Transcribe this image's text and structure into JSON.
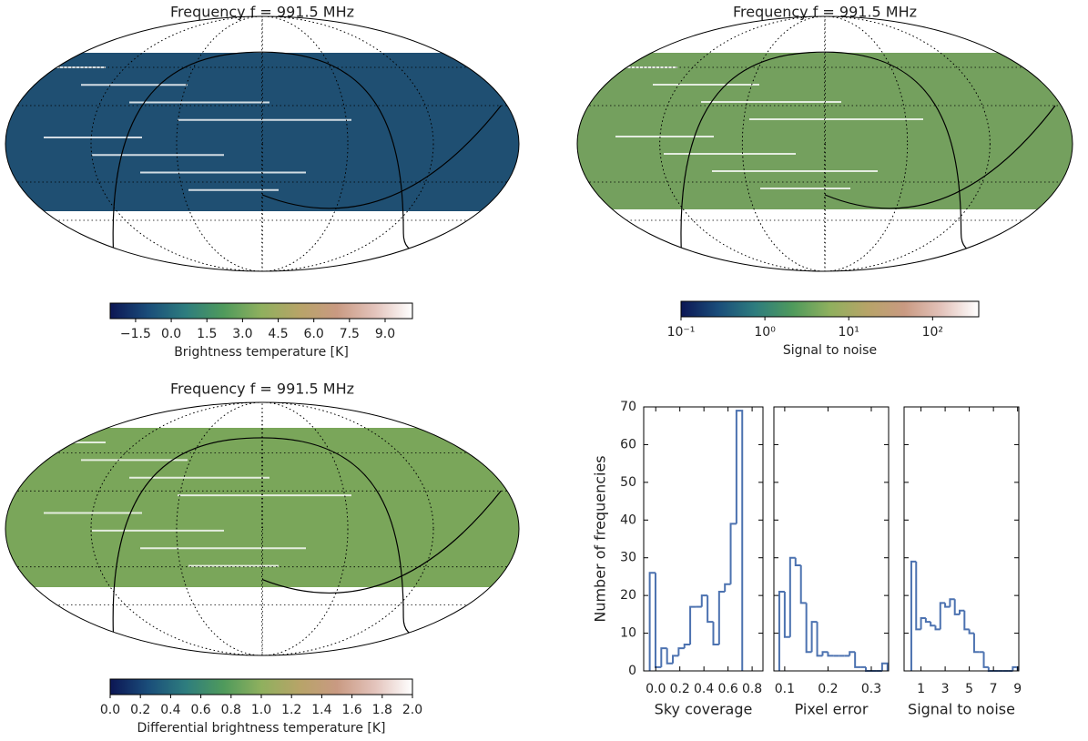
{
  "chart_data": [
    {
      "type": "map",
      "title": "Frequency f = 991.5 MHz",
      "colorbar": {
        "label": "Brightness temperature [K]",
        "lim": [
          -2.57,
          10.15
        ],
        "ticks": [
          {
            "value": -1.5,
            "label": "−1.5"
          },
          {
            "value": 0,
            "label": "0.0"
          },
          1.5,
          {
            "value": 3,
            "label": "3.0"
          },
          4.5,
          {
            "value": 6,
            "label": "6.0"
          },
          7.5,
          {
            "value": 9,
            "label": "9.0"
          }
        ],
        "log": false,
        "colormap": [
          "#0c1654",
          "#1a4d7a",
          "#2e7d7e",
          "#4f9a5c",
          "#8fb05e",
          "#b7a468",
          "#c99a82",
          "#e3c3bb",
          "#ffffff"
        ]
      }
    },
    {
      "type": "map",
      "title": "Frequency f = 991.5 MHz",
      "colorbar": {
        "label": "Signal to noise",
        "lim": [
          0.1,
          355
        ],
        "ticks": [
          {
            "value": 0.1,
            "label": "10⁻¹"
          },
          {
            "value": 1,
            "label": "10⁰"
          },
          {
            "value": 10,
            "label": "10¹"
          },
          {
            "value": 100,
            "label": "10²"
          }
        ],
        "log": true,
        "colormap": [
          "#0c1654",
          "#1a4d7a",
          "#2e7d7e",
          "#4f9a5c",
          "#8fb05e",
          "#b7a468",
          "#c99a82",
          "#e3c3bb",
          "#ffffff"
        ]
      }
    },
    {
      "type": "map",
      "title": "Frequency f = 991.5 MHz",
      "colorbar": {
        "label": "Differential brightness temperature [K]",
        "lim": [
          0,
          2
        ],
        "ticks": [
          {
            "value": 0,
            "label": "0.0"
          },
          0.2,
          0.4,
          0.6,
          0.8,
          {
            "value": 1,
            "label": "1.0"
          },
          1.2,
          1.4,
          1.6,
          1.8,
          {
            "value": 2,
            "label": "2.0"
          }
        ],
        "log": false,
        "colormap": [
          "#0c1654",
          "#1a4d7a",
          "#2e7d7e",
          "#4f9a5c",
          "#8fb05e",
          "#b7a468",
          "#c99a82",
          "#e3c3bb",
          "#ffffff"
        ]
      }
    },
    {
      "type": "histogram",
      "xlabel": "Sky coverage",
      "ylabel": "Number of frequencies",
      "color": "#4c72b0",
      "bins": [
        -0.05,
        -0.002,
        0.046,
        0.094,
        0.142,
        0.19,
        0.238,
        0.286,
        0.334,
        0.382,
        0.43,
        0.478,
        0.526,
        0.574,
        0.622,
        0.67,
        0.718
      ],
      "values": [
        26,
        1,
        6,
        2,
        4,
        6,
        7,
        17,
        17,
        20,
        13,
        7,
        21,
        23,
        39,
        69
      ],
      "xlim": [
        -0.1,
        0.89
      ],
      "xticks": [
        {
          "value": 0,
          "label": "0.0"
        },
        0.2,
        0.4,
        0.6,
        0.8
      ],
      "ylim": [
        0,
        70
      ],
      "yticks": [
        0,
        10,
        20,
        30,
        40,
        50,
        60,
        70
      ]
    },
    {
      "type": "histogram",
      "xlabel": "Pixel error",
      "color": "#4c72b0",
      "bins": [
        0.0875,
        0.1,
        0.1125,
        0.125,
        0.1375,
        0.15,
        0.1625,
        0.175,
        0.1875,
        0.2,
        0.2125,
        0.225,
        0.2375,
        0.25,
        0.2625,
        0.275,
        0.2875,
        0.3,
        0.3125,
        0.325,
        0.3375
      ],
      "values": [
        21,
        9,
        30,
        28,
        18,
        5,
        13,
        4,
        5,
        4,
        4,
        4,
        4,
        5,
        1,
        1,
        0,
        0,
        0,
        2
      ],
      "xlim": [
        0.075,
        0.34
      ],
      "xticks": [
        0.1,
        0.2,
        0.3
      ],
      "ylim": [
        0,
        70
      ],
      "yticks": [
        0,
        10,
        20,
        30,
        40,
        50,
        60,
        70
      ]
    },
    {
      "type": "histogram",
      "xlabel": "Signal to noise",
      "color": "#4c72b0",
      "bins": [
        0.2,
        0.6,
        1.0,
        1.4,
        1.8,
        2.2,
        2.6,
        3.0,
        3.4,
        3.8,
        4.2,
        4.6,
        5.0,
        5.4,
        5.8,
        6.2,
        6.6,
        7.0,
        7.4,
        7.8,
        8.2,
        8.6,
        9.0
      ],
      "values": [
        29,
        11,
        14,
        13,
        12,
        11,
        18,
        17,
        19,
        15,
        16,
        11,
        10,
        5,
        5,
        1,
        0,
        0,
        0,
        0,
        0,
        1
      ],
      "xlim": [
        -0.4,
        9.1
      ],
      "xticks": [
        1,
        3,
        5,
        7,
        9
      ],
      "ylim": [
        0,
        70
      ],
      "yticks": [
        0,
        10,
        20,
        30,
        40,
        50,
        60,
        70
      ]
    }
  ]
}
